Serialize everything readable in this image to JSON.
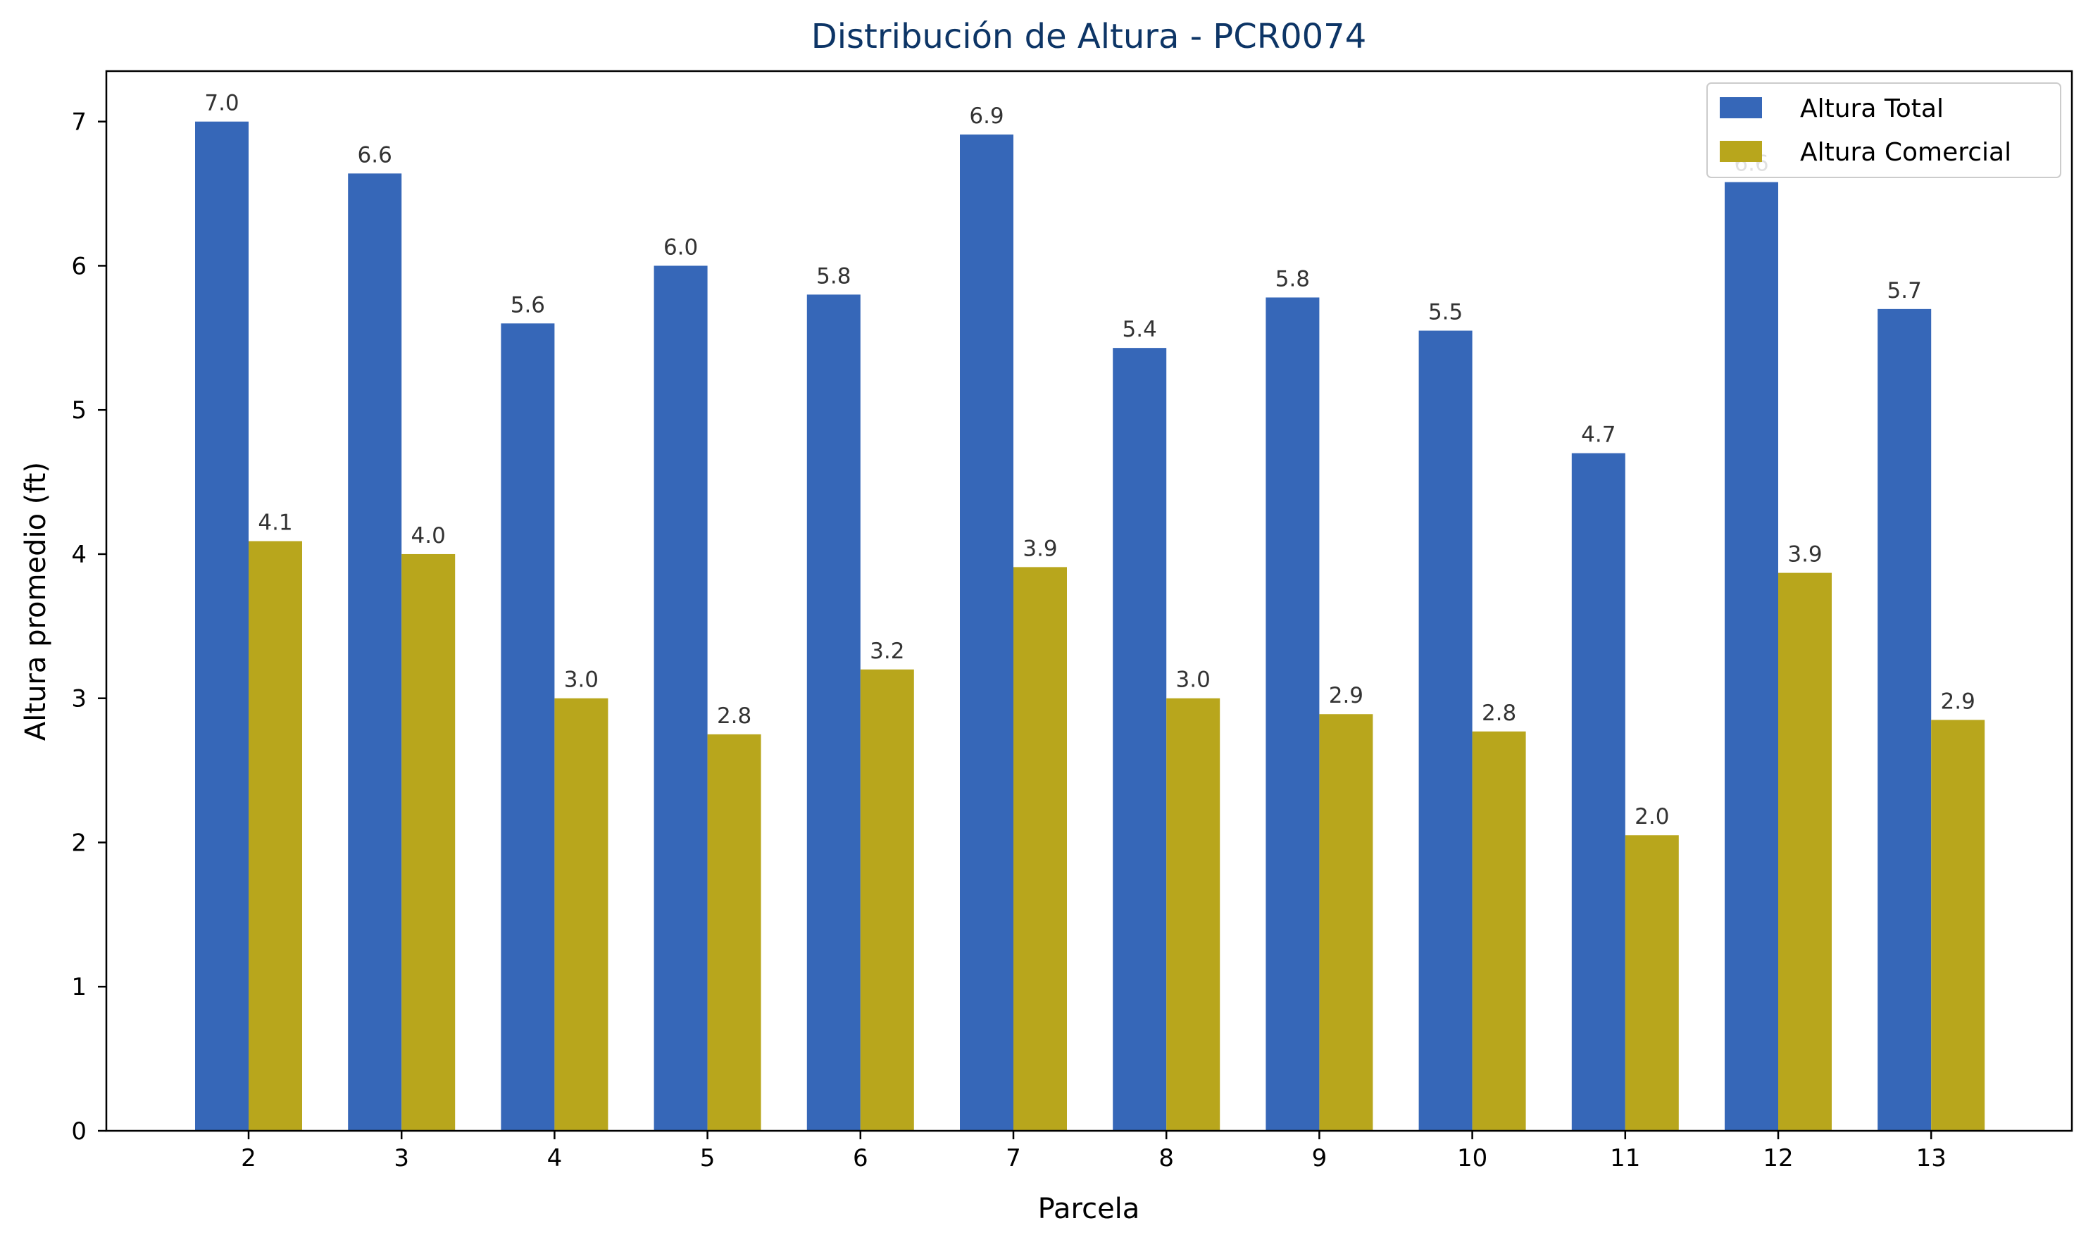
{
  "chart_data": {
    "type": "bar",
    "title": "Distribución de Altura - PCR0074",
    "xlabel": "Parcela",
    "ylabel": "Altura promedio (ft)",
    "ylim": [
      0,
      7.35
    ],
    "yticks": [
      "0",
      "1",
      "2",
      "3",
      "4",
      "5",
      "6",
      "7"
    ],
    "categories": [
      "2",
      "3",
      "4",
      "5",
      "6",
      "7",
      "8",
      "9",
      "10",
      "11",
      "12",
      "13"
    ],
    "series": [
      {
        "name": "Altura Total",
        "color": "#3667b8",
        "values": [
          7.0,
          6.64,
          5.6,
          6.0,
          5.8,
          6.91,
          5.43,
          5.78,
          5.55,
          4.7,
          6.58,
          5.7
        ],
        "labels": [
          "7.0",
          "6.6",
          "5.6",
          "6.0",
          "5.8",
          "6.9",
          "5.4",
          "5.8",
          "5.5",
          "4.7",
          "6.6",
          "5.7"
        ]
      },
      {
        "name": "Altura Comercial",
        "color": "#b8a61c",
        "values": [
          4.09,
          4.0,
          3.0,
          2.75,
          3.2,
          3.91,
          3.0,
          2.89,
          2.77,
          2.05,
          3.87,
          2.85
        ],
        "labels": [
          "4.1",
          "4.0",
          "3.0",
          "2.8",
          "3.2",
          "3.9",
          "3.0",
          "2.9",
          "2.8",
          "2.0",
          "3.9",
          "2.9"
        ]
      }
    ],
    "legend_position": "upper-right",
    "title_color": "#0d3566",
    "grid": false
  }
}
